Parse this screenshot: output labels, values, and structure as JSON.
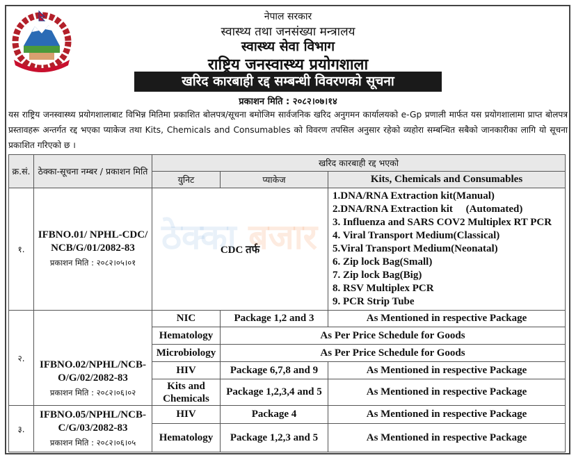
{
  "header": {
    "gov": "नेपाल सरकार",
    "ministry": "स्वास्थ्य तथा जनसंख्या मन्त्रालय",
    "department": "स्वास्थ्य सेवा विभाग",
    "lab": "राष्ट्रिय जनस्वास्थ्य प्रयोगशाला",
    "notice_title": "खरिद कारबाही रद्द सम्बन्धी विवरणको सूचना",
    "publish_date": "प्रकाशन मिति : २०८२।०७।१४",
    "emblem_text": "नेपाल सरकार"
  },
  "intro": "यस राष्ट्रिय जनस्वास्थ्य प्रयोगशालाबाट विभिन्न मितिमा प्रकाशित बोलपत्र/सूचना बमोजिम सार्वजनिक खरिद अनुगमन कार्यालयको e-Gp प्रणाली मार्फत यस प्रयोगशालामा प्राप्त बोलपत्र प्रस्तावहरू अन्तर्गत रद्द भएका प्याकेज तथा Kits, Chemicals and Consumables को  विवरण तपसिल अनुसार रहेको व्यहोरा सम्बन्धित सबैको जानकारीका लागि यो सूचना प्रकाशित गरिएको छ ।",
  "watermark": {
    "part1": "ठेक्का",
    "part2": "बजार"
  },
  "table": {
    "headers": {
      "sn": "क्र.सं.",
      "notice_no": "ठेक्का-सूचना नम्बर / प्रकाशन मिति",
      "cancelled": "खरिद कारबाही रद्द भएको",
      "unit": "युनिट",
      "package": "प्याकेज",
      "kits": "Kits, Chemicals and Consumables"
    },
    "rows": [
      {
        "sn": "१.",
        "ifb": "IFBNO.01/ NPHL-CDC/ NCB/G/01/2082-83",
        "date": "प्रकाशन मिति : २०८२।०५।०१",
        "unit_package": "CDC तर्फ",
        "items": [
          "1.DNA/RNA Extraction kit(Manual)",
          "2.DNA/RNA Extraction kit     (Automated)",
          "3. Influenza and SARS COV2 Multiplex RT PCR",
          "4. Viral Transport Medium(Classical)",
          "5.Viral Transport Medium(Neonatal)",
          "6. Zip lock Bag(Small)",
          "7. Zip lock Bag(Big)",
          "8. RSV Multiplex PCR",
          "9. PCR Strip Tube"
        ]
      },
      {
        "sn": "२.",
        "ifb": "IFBNO.02/NPHL/NCB-O/G/02/2082-83",
        "date": "प्रकाशन मिति : २०८२।०६।०२",
        "sub": [
          {
            "unit": "NIC",
            "package": "Package 1,2 and 3",
            "kits": "As Mentioned in respective Package"
          },
          {
            "unit": "Hematology",
            "merged": "As Per Price Schedule for Goods"
          },
          {
            "unit": "Microbiology",
            "merged": "As Per Price Schedule for Goods"
          },
          {
            "unit": "HIV",
            "package": "Package 6,7,8 and 9",
            "kits": "As Mentioned in respective Package"
          },
          {
            "unit": "Kits and Chemicals",
            "package": "Package 1,2,3,4 and 5",
            "kits": "As Mentioned in respective Package"
          }
        ]
      },
      {
        "sn": "३.",
        "ifb": "IFBNO.05/NPHL/NCB-C/G/03/2082-83",
        "date": "प्रकाशन मिति : २०८२।०६।०५",
        "sub": [
          {
            "unit": "HIV",
            "package": "Package 4",
            "kits": "As Mentioned in respective Package"
          },
          {
            "unit": "Hematology",
            "package": "Package 1,2,3 and 5",
            "kits": "As Mentioned in respective Package"
          }
        ]
      }
    ]
  }
}
